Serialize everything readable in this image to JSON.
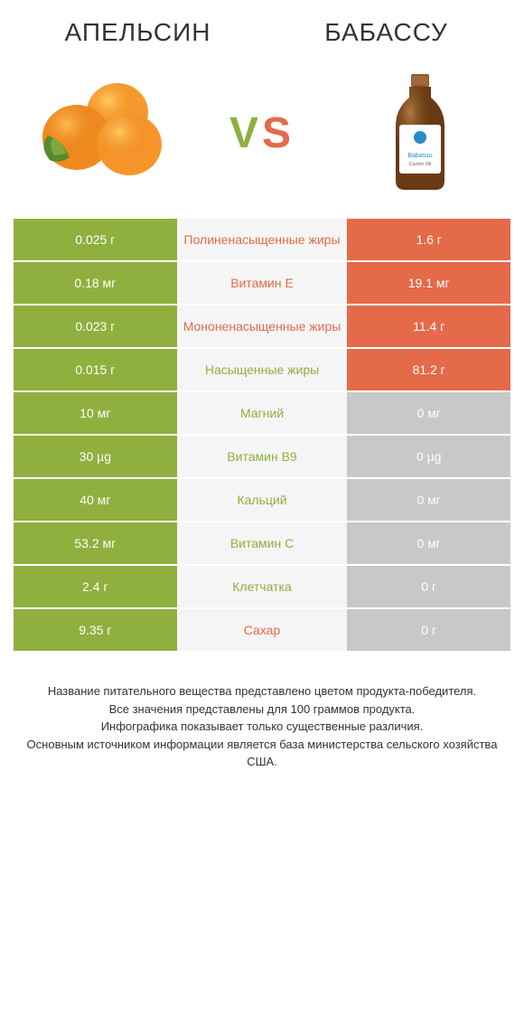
{
  "colors": {
    "left_product": "#8fb03e",
    "right_product": "#e46a4a",
    "neutral_cell": "#c8c8c8",
    "mid_bg": "#f5f5f5",
    "text_dark": "#333333"
  },
  "header": {
    "left_title": "АПЕЛЬСИН",
    "right_title": "БАБАССУ",
    "vs_v": "V",
    "vs_s": "S"
  },
  "rows": [
    {
      "left": "0.025 г",
      "mid": "Полиненасыщенные жиры",
      "right": "1.6 г",
      "left_color": "left_product",
      "right_color": "right_product",
      "mid_color": "right_product"
    },
    {
      "left": "0.18 мг",
      "mid": "Витамин E",
      "right": "19.1 мг",
      "left_color": "left_product",
      "right_color": "right_product",
      "mid_color": "right_product"
    },
    {
      "left": "0.023 г",
      "mid": "Мононенасыщенные жиры",
      "right": "11.4 г",
      "left_color": "left_product",
      "right_color": "right_product",
      "mid_color": "right_product"
    },
    {
      "left": "0.015 г",
      "mid": "Насыщенные жиры",
      "right": "81.2 г",
      "left_color": "left_product",
      "right_color": "right_product",
      "mid_color": "left_product"
    },
    {
      "left": "10 мг",
      "mid": "Магний",
      "right": "0 мг",
      "left_color": "left_product",
      "right_color": "neutral_cell",
      "mid_color": "left_product"
    },
    {
      "left": "30 µg",
      "mid": "Витамин B9",
      "right": "0 µg",
      "left_color": "left_product",
      "right_color": "neutral_cell",
      "mid_color": "left_product"
    },
    {
      "left": "40 мг",
      "mid": "Кальций",
      "right": "0 мг",
      "left_color": "left_product",
      "right_color": "neutral_cell",
      "mid_color": "left_product"
    },
    {
      "left": "53.2 мг",
      "mid": "Витамин C",
      "right": "0 мг",
      "left_color": "left_product",
      "right_color": "neutral_cell",
      "mid_color": "left_product"
    },
    {
      "left": "2.4 г",
      "mid": "Клетчатка",
      "right": "0 г",
      "left_color": "left_product",
      "right_color": "neutral_cell",
      "mid_color": "left_product"
    },
    {
      "left": "9.35 г",
      "mid": "Сахар",
      "right": "0 г",
      "left_color": "left_product",
      "right_color": "neutral_cell",
      "mid_color": "right_product"
    }
  ],
  "footer": {
    "line1": "Название питательного вещества представлено цветом продукта-победителя.",
    "line2": "Все значения представлены для 100 граммов продукта.",
    "line3": "Инфографика показывает только существенные различия.",
    "line4": "Основным источником информации является база министерства сельского хозяйства США."
  }
}
